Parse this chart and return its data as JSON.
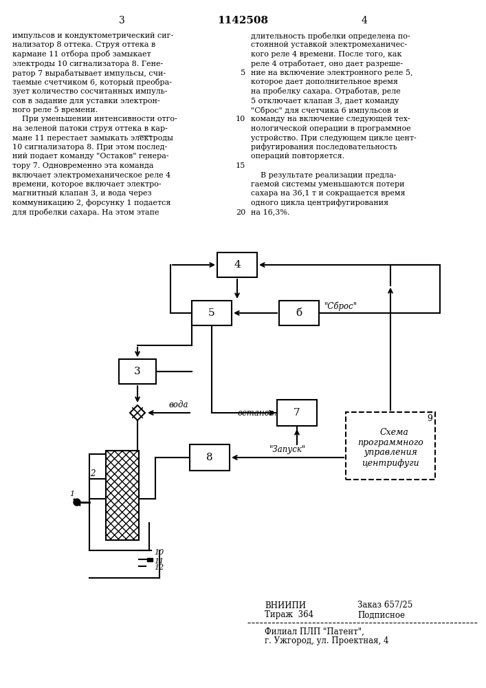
{
  "title_num": "1142508",
  "page_left": "3",
  "page_right": "4",
  "text_left": [
    "импульсов и кондуктометрический сиг-",
    "нализатор 8 оттека. Струя оттека в",
    "кармане 11 отбора проб замыкает",
    "электроды 10 сигнализатора 8. Гене-",
    "ратор 7 вырабатывает импульсы, счи-",
    "таемые счетчиком 6, который преобра-",
    "зует количество сосчитанных импуль-",
    "сов в задание для уставки электрон-",
    "ного реле 5 времени.",
    "    При уменьшении интенсивности отго-",
    "на зеленой патоки струя оттека в кар-",
    "мане 11 перестает замыкать электроды",
    "10 сигнализатора 8. При этом послед-",
    "ний подает команду \"Остаков\" генера-",
    "тору 7. Одновременно эта команда",
    "включает электромеханическое реле 4",
    "времени, которое включает электро-",
    "магнитный клапан 3, и вода через",
    "коммуникацию 2, форсунку 1 подается",
    "для пробелки сахара. На этом этапе"
  ],
  "text_right": [
    "длительность пробелки определена по-",
    "стоянной уставкой электромеханичес-",
    "кого реле 4 времени. После того, как",
    "реле 4 отработает, оно дает разреше-",
    "ние на включение электронного реле 5,",
    "которое дает дополнительное время",
    "на пробелку сахара. Отработав, реле",
    "5 отключает клапан 3, дает команду",
    "\"Сброс\" для счетчика 6 импульсов и",
    "команду на включение следующей тех-",
    "нологической операции в программное",
    "устройство. При следующем цикле цент-",
    "рифугирования последовательность",
    "операций повторяется.",
    "",
    "    В результате реализации предла-",
    "гаемой системы уменьшаются потери",
    "сахара на 36,1 т и сокращается время",
    "одного цикла центрифугирования",
    "на 16,3%."
  ],
  "footer_line1_left": "ВНИИПИ",
  "footer_line1_right": "Заказ 657/25",
  "footer_line2_left": "Тираж  364",
  "footer_line2_right": "Подписное",
  "footer_line3": "Филиал ПЛП \"Патент\",",
  "footer_line4": "г. Ужгород, ул. Проектная, 4"
}
